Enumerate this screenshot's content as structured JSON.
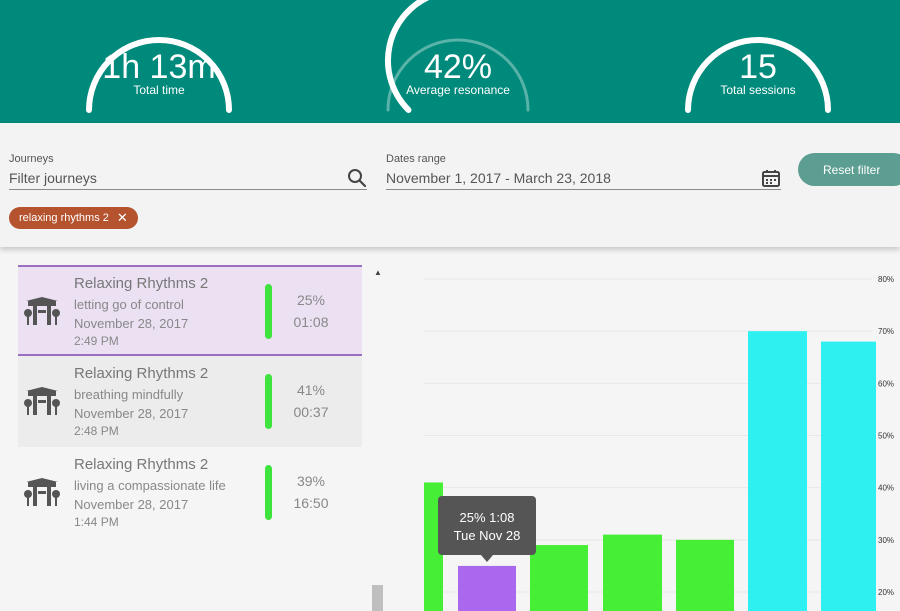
{
  "stats": {
    "total_time": {
      "value": "1h 13m",
      "label": "Total time"
    },
    "average_resonance": {
      "value": "42%",
      "label": "Average resonance",
      "progress": 0.42
    },
    "total_sessions": {
      "value": "15",
      "label": "Total sessions"
    }
  },
  "filters": {
    "journeys_label": "Journeys",
    "journeys_placeholder": "Filter journeys",
    "dates_label": "Dates range",
    "dates_value": "November 1, 2017 - March 23, 2018",
    "reset_label": "Reset filter",
    "chip_label": "relaxing rhythms 2",
    "chip_close": "✕"
  },
  "sessions": [
    {
      "title": "Relaxing Rhythms 2",
      "subtitle": "letting go of control",
      "date": "November 28, 2017",
      "time": "2:49 PM",
      "percent": "25%",
      "duration": "01:08"
    },
    {
      "title": "Relaxing Rhythms 2",
      "subtitle": "breathing mindfully",
      "date": "November 28, 2017",
      "time": "2:48 PM",
      "percent": "41%",
      "duration": "00:37"
    },
    {
      "title": "Relaxing Rhythms 2",
      "subtitle": "living a compassionate life",
      "date": "November 28, 2017",
      "time": "1:44 PM",
      "percent": "39%",
      "duration": "16:50"
    }
  ],
  "colors": {
    "header": "#008a7c",
    "selected_bar": "#a968ee",
    "green_bar": "#47ee36",
    "cyan_bar": "#2ff0f0",
    "chip": "#b5532e"
  },
  "icons": {
    "search": "search-icon",
    "calendar": "calendar-icon",
    "temple": "temple-icon"
  },
  "chart_data": {
    "type": "bar",
    "y_ticks": [
      "80%",
      "70%",
      "60%",
      "50%",
      "40%",
      "30%",
      "20%"
    ],
    "ylim": [
      20,
      80
    ],
    "bars": [
      {
        "value": 41,
        "color": "#47ee36"
      },
      {
        "value": 25,
        "color": "#a968ee"
      },
      {
        "value": 29,
        "color": "#47ee36"
      },
      {
        "value": 31,
        "color": "#47ee36"
      },
      {
        "value": 30,
        "color": "#47ee36"
      },
      {
        "value": 70,
        "color": "#2ff0f0"
      },
      {
        "value": 68,
        "color": "#2ff0f0"
      }
    ],
    "tooltip": {
      "line1": "25% 1:08",
      "line2": "Tue Nov 28"
    }
  }
}
